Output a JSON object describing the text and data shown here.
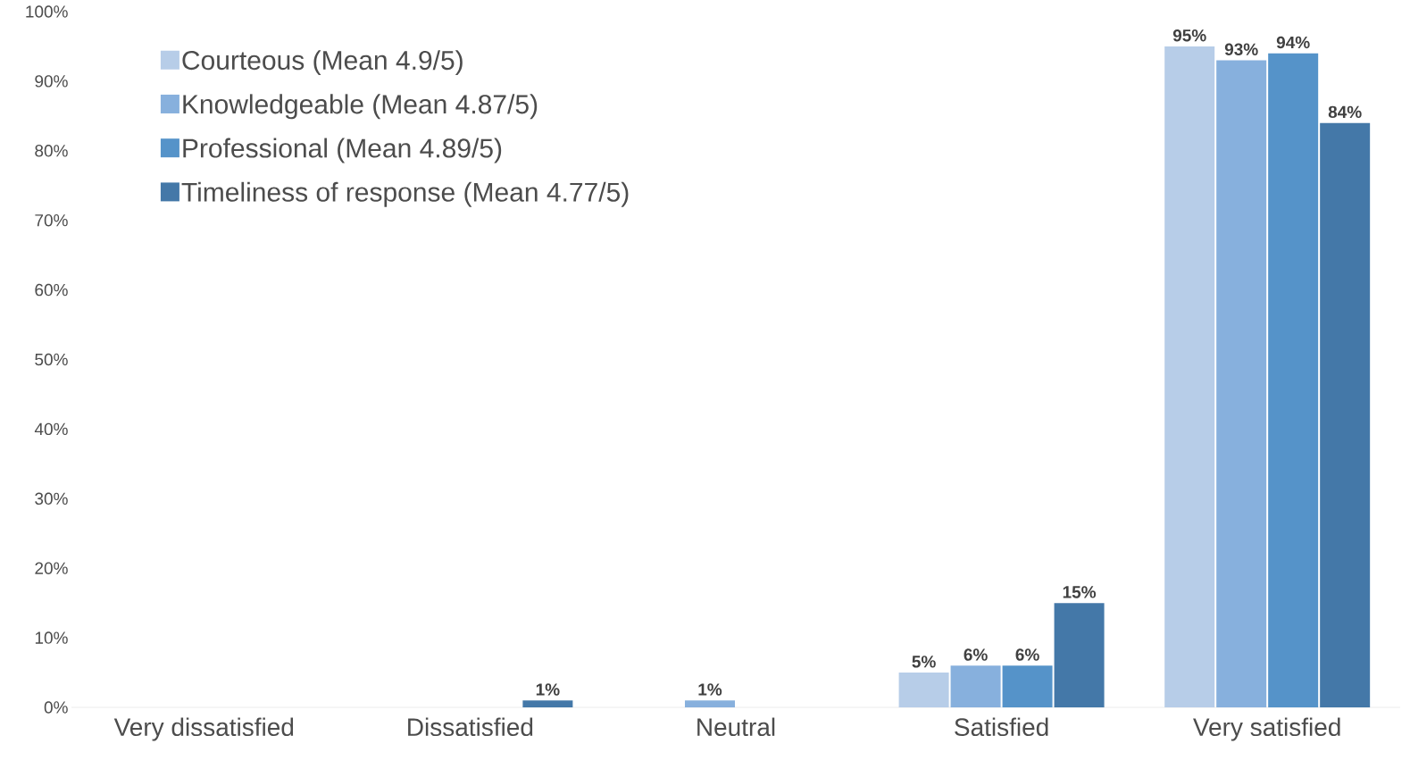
{
  "chart_data": {
    "type": "bar",
    "categories": [
      "Very dissatisfied",
      "Dissatisfied",
      "Neutral",
      "Satisfied",
      "Very satisfied"
    ],
    "series": [
      {
        "name": "Courteous (Mean 4.9/5)",
        "color": "#b7cde8",
        "values": [
          0,
          0,
          0,
          5,
          95
        ],
        "value_labels": [
          null,
          null,
          null,
          "5%",
          "95%"
        ]
      },
      {
        "name": "Knowledgeable (Mean 4.87/5)",
        "color": "#87b0dd",
        "values": [
          0,
          0,
          1,
          6,
          93
        ],
        "value_labels": [
          null,
          null,
          "1%",
          "6%",
          "93%"
        ]
      },
      {
        "name": "Professional (Mean 4.89/5)",
        "color": "#5593c9",
        "values": [
          0,
          0,
          0,
          6,
          94
        ],
        "value_labels": [
          null,
          null,
          null,
          "6%",
          "94%"
        ]
      },
      {
        "name": "Timeliness of response (Mean 4.77/5)",
        "color": "#4478a8",
        "values": [
          0,
          1,
          0,
          15,
          84
        ],
        "value_labels": [
          null,
          "1%",
          null,
          "15%",
          "84%"
        ]
      }
    ],
    "ylim": [
      0,
      100
    ],
    "yticks": [
      {
        "value": 0,
        "label": "0%"
      },
      {
        "value": 10,
        "label": "10%"
      },
      {
        "value": 20,
        "label": "20%"
      },
      {
        "value": 30,
        "label": "30%"
      },
      {
        "value": 40,
        "label": "40%"
      },
      {
        "value": 50,
        "label": "50%"
      },
      {
        "value": 60,
        "label": "60%"
      },
      {
        "value": 70,
        "label": "70%"
      },
      {
        "value": 80,
        "label": "80%"
      },
      {
        "value": 90,
        "label": "90%"
      },
      {
        "value": 100,
        "label": "100%"
      }
    ],
    "grid": false,
    "legend": "top left"
  }
}
